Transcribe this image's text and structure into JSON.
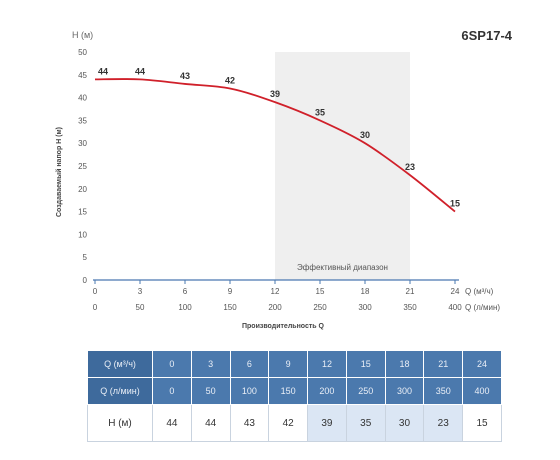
{
  "model_title": "6SP17-4",
  "y_unit_label": "H (м)",
  "effective_range_label": "Эффективный диапазон",
  "colors": {
    "curve": "#d0202a",
    "axis": "#4a78b0",
    "band": "#efefef",
    "table_header": "#4b79ad",
    "table_highlight": "#dbe6f4"
  },
  "chart_data": {
    "type": "line",
    "title": "6SP17-4",
    "ylabel": "Создаваемый напор H (м)",
    "xlabel": "Производительность Q",
    "x_axis_primary_label": "Q (м³/ч)",
    "x_axis_secondary_label": "Q (л/мин)",
    "x_ticks_m3h": [
      0,
      3,
      6,
      9,
      12,
      15,
      18,
      21,
      24
    ],
    "x_ticks_lmin": [
      0,
      50,
      100,
      150,
      200,
      250,
      300,
      350,
      400
    ],
    "y_ticks": [
      0,
      5,
      10,
      15,
      20,
      25,
      30,
      35,
      40,
      45,
      50
    ],
    "xlim": [
      0,
      24
    ],
    "ylim": [
      0,
      50
    ],
    "grid": false,
    "effective_range": [
      12,
      21
    ],
    "series": [
      {
        "x": [
          0,
          3,
          6,
          9,
          12,
          15,
          18,
          21,
          24
        ],
        "values": [
          44,
          44,
          43,
          42,
          39,
          35,
          30,
          23,
          15
        ]
      }
    ],
    "data_labels": [
      "44",
      "44",
      "43",
      "42",
      "39",
      "35",
      "30",
      "23",
      "15"
    ]
  },
  "table": {
    "rows": [
      {
        "label": "Q (м³/ч)",
        "cells": [
          "0",
          "3",
          "6",
          "9",
          "12",
          "15",
          "18",
          "21",
          "24"
        ]
      },
      {
        "label": "Q (л/мин)",
        "cells": [
          "0",
          "50",
          "100",
          "150",
          "200",
          "250",
          "300",
          "350",
          "400"
        ]
      },
      {
        "label": "H (м)",
        "cells": [
          "44",
          "44",
          "43",
          "42",
          "39",
          "35",
          "30",
          "23",
          "15"
        ]
      }
    ],
    "highlight_columns": [
      4,
      5,
      6,
      7
    ]
  }
}
